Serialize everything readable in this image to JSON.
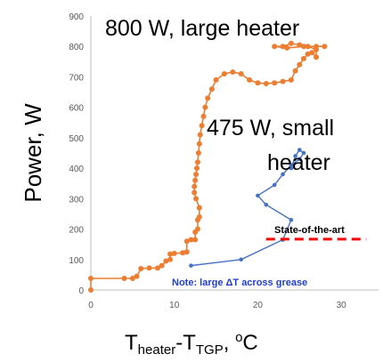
{
  "chart_data": {
    "type": "scatter",
    "xlim": [
      0,
      35
    ],
    "ylim": [
      0,
      900
    ],
    "x_ticks": [
      "0",
      "10",
      "20",
      "30"
    ],
    "y_ticks": [
      "0",
      "100",
      "200",
      "300",
      "400",
      "500",
      "600",
      "700",
      "800",
      "900"
    ],
    "ylabel": "Power, W",
    "xlabel": {
      "base1": "T",
      "sub1": "heater",
      "mid": "-T",
      "sub2": "TGP",
      "unit_pre": ", ",
      "sup": "o",
      "unit": "C"
    },
    "grid": false,
    "series": [
      {
        "label_line1": "800 W, large heater",
        "color": "#ed7d31",
        "points": [
          [
            0,
            0
          ],
          [
            0,
            38
          ],
          [
            4,
            38
          ],
          [
            5,
            38
          ],
          [
            5.5,
            45
          ],
          [
            6,
            70
          ],
          [
            7,
            72
          ],
          [
            8,
            72
          ],
          [
            8.5,
            80
          ],
          [
            9,
            95
          ],
          [
            9.5,
            100
          ],
          [
            9.5,
            118
          ],
          [
            10,
            120
          ],
          [
            11,
            122
          ],
          [
            11.5,
            125
          ],
          [
            11.5,
            160
          ],
          [
            12,
            165
          ],
          [
            12.5,
            165
          ],
          [
            12.5,
            190
          ],
          [
            12.8,
            200
          ],
          [
            12.8,
            230
          ],
          [
            13,
            240
          ],
          [
            13,
            270
          ],
          [
            12.6,
            300
          ],
          [
            12.4,
            320
          ],
          [
            12.4,
            340
          ],
          [
            12.5,
            360
          ],
          [
            12.6,
            380
          ],
          [
            12.7,
            400
          ],
          [
            12.8,
            420
          ],
          [
            12.9,
            450
          ],
          [
            13,
            480
          ],
          [
            13.1,
            510
          ],
          [
            13.3,
            540
          ],
          [
            13.5,
            570
          ],
          [
            13.7,
            600
          ],
          [
            14,
            630
          ],
          [
            14.5,
            660
          ],
          [
            15,
            690
          ],
          [
            16,
            710
          ],
          [
            17,
            716
          ],
          [
            18,
            710
          ],
          [
            19,
            690
          ],
          [
            20,
            680
          ],
          [
            21,
            678
          ],
          [
            22,
            680
          ],
          [
            23,
            685
          ],
          [
            24,
            690
          ],
          [
            24.5,
            720
          ],
          [
            25,
            740
          ],
          [
            25.5,
            760
          ],
          [
            26,
            775
          ],
          [
            26.5,
            780
          ],
          [
            27,
            765
          ],
          [
            27,
            790
          ],
          [
            26,
            800
          ],
          [
            25,
            805
          ],
          [
            24,
            810
          ],
          [
            23,
            800
          ],
          [
            22,
            800
          ],
          [
            23.5,
            795
          ],
          [
            25.5,
            800
          ],
          [
            27,
            800
          ],
          [
            28,
            800
          ]
        ]
      },
      {
        "label_line1": "475 W, small",
        "label_line2": "heater",
        "color": "#4472c4",
        "points": [
          [
            12,
            80
          ],
          [
            18,
            100
          ],
          [
            23,
            165
          ],
          [
            24,
            230
          ],
          [
            21,
            280
          ],
          [
            20,
            310
          ],
          [
            22,
            345
          ],
          [
            23,
            380
          ],
          [
            24,
            410
          ],
          [
            25,
            430
          ],
          [
            25.5,
            450
          ],
          [
            25,
            460
          ],
          [
            24.5,
            440
          ],
          [
            24,
            400
          ]
        ]
      }
    ],
    "reference_line": {
      "label": "State-of-the-art",
      "y": 167,
      "x_start": 21,
      "x_end": 33,
      "color": "#ff0000"
    },
    "annotation": "Note: large ΔT across grease"
  }
}
